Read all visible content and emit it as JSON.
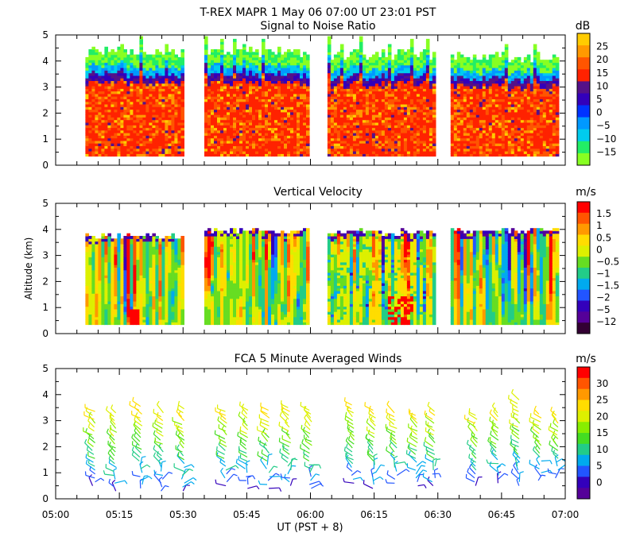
{
  "figure": {
    "title_line1": "T-REX   MAPR   1 May 06   07:00 UT   23:01   PST",
    "ylabel": "Altitude (km)",
    "xlabel": "UT  (PST + 8)",
    "x_ticks": [
      "05:00",
      "05:15",
      "05:30",
      "05:45",
      "06:00",
      "06:15",
      "06:30",
      "06:45",
      "07:00"
    ],
    "y_ticks": [
      "0",
      "1",
      "2",
      "3",
      "4",
      "5"
    ]
  },
  "chart_data": [
    {
      "type": "heatmap",
      "title": "Signal to Noise Ratio",
      "unit": "dB",
      "xlim_minutes": [
        0,
        120
      ],
      "ylim_km": [
        0,
        5
      ],
      "colorbar_labels": [
        "25",
        "20",
        "15",
        "10",
        "5",
        "0",
        "−5",
        "−10",
        "−15"
      ],
      "colorbar_colors": [
        "#ffcc00",
        "#ff9900",
        "#ff5500",
        "#ff2200",
        "#551188",
        "#3300bb",
        "#0033ff",
        "#0099ff",
        "#00ccee",
        "#22ee66",
        "#88ff22"
      ],
      "segments": [
        {
          "start_min": 7,
          "end_min": 30,
          "top_km": 4.3
        },
        {
          "start_min": 35,
          "end_min": 59,
          "top_km": 4.3
        },
        {
          "start_min": 64,
          "end_min": 89,
          "top_km": 4.2
        },
        {
          "start_min": 93,
          "end_min": 118,
          "top_km": 4.1
        }
      ],
      "bottom_km": 0.35
    },
    {
      "type": "heatmap",
      "title": "Vertical Velocity",
      "unit": "m/s",
      "xlim_minutes": [
        0,
        120
      ],
      "ylim_km": [
        0,
        5
      ],
      "colorbar_labels": [
        "1.5",
        "1",
        "0.5",
        "0",
        "−0.5",
        "−1",
        "−1.5",
        "−2",
        "−5",
        "−12"
      ],
      "colorbar_colors": [
        "#ff0000",
        "#ff5500",
        "#ff9900",
        "#ffdd00",
        "#ddf000",
        "#66dd22",
        "#22cc88",
        "#00aaee",
        "#2255ff",
        "#3300bb",
        "#550099",
        "#330033"
      ],
      "segments": [
        {
          "start_min": 7,
          "end_min": 30,
          "top_km": 3.7
        },
        {
          "start_min": 35,
          "end_min": 59,
          "top_km": 3.9
        },
        {
          "start_min": 64,
          "end_min": 89,
          "top_km": 3.85
        },
        {
          "start_min": 93,
          "end_min": 118,
          "top_km": 3.9
        }
      ],
      "bottom_km": 0.35
    },
    {
      "type": "scatter",
      "subtype": "wind-barbs",
      "title": "FCA 5 Minute Averaged Winds",
      "unit": "m/s",
      "xlim_minutes": [
        0,
        120
      ],
      "ylim_km": [
        0,
        5
      ],
      "colorbar_labels": [
        "30",
        "25",
        "20",
        "15",
        "10",
        "5",
        "0"
      ],
      "colorbar_colors": [
        "#ff0000",
        "#ff5500",
        "#ff9900",
        "#ffdd00",
        "#ddf000",
        "#88ee00",
        "#44dd22",
        "#22cc88",
        "#00aaee",
        "#2255ff",
        "#3300bb",
        "#550099"
      ],
      "profile_times_min": [
        9,
        14,
        20,
        25,
        30,
        40,
        45,
        50,
        55,
        60,
        70,
        75,
        80,
        85,
        89,
        99,
        104,
        109,
        114,
        118
      ],
      "profile_tops_km": [
        3.4,
        3.3,
        3.6,
        3.4,
        3.5,
        3.4,
        3.5,
        3.4,
        3.5,
        3.4,
        3.6,
        3.4,
        3.3,
        3.2,
        3.4,
        3.2,
        3.3,
        3.8,
        3.3,
        3.2
      ],
      "profile_bottoms_km": [
        0.5,
        0.3,
        0.4,
        0.3,
        0.3,
        0.5,
        0.4,
        0.4,
        0.5,
        0.4,
        0.6,
        0.4,
        0.6,
        0.5,
        0.5,
        0.5,
        0.6,
        0.5,
        0.7,
        0.8
      ]
    }
  ]
}
